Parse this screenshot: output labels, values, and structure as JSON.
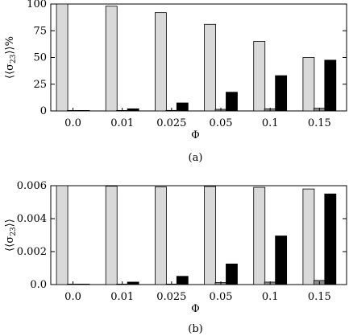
{
  "colors": {
    "series_1": "#d9d9d9",
    "series_2": "#8c8c8c",
    "series_3": "#000000"
  },
  "chart_data": [
    {
      "type": "bar",
      "caption": "(a)",
      "xlabel": "Φ",
      "ylabel": "⟨⟨σ23⟩⟩%",
      "categories": [
        "0.0",
        "0.01",
        "0.025",
        "0.05",
        "0.1",
        "0.15"
      ],
      "ylim": [
        0,
        100
      ],
      "yticks": [
        0,
        25,
        50,
        75,
        100
      ],
      "ytick_labels": [
        "0",
        "25",
        "50",
        "75",
        "100"
      ],
      "series": [
        {
          "values": [
            100,
            98,
            92,
            81,
            65,
            50
          ]
        },
        {
          "values": [
            0,
            0,
            0.5,
            1.5,
            2,
            2.5
          ]
        },
        {
          "values": [
            0,
            2,
            7.5,
            17.5,
            33,
            47.5
          ]
        }
      ]
    },
    {
      "type": "bar",
      "caption": "(b)",
      "xlabel": "Φ",
      "ylabel": "⟨⟨σ23⟩⟩",
      "categories": [
        "0.0",
        "0.01",
        "0.025",
        "0.05",
        "0.1",
        "0.15"
      ],
      "ylim": [
        0,
        0.006
      ],
      "yticks": [
        0,
        0.002,
        0.004,
        0.006
      ],
      "ytick_labels": [
        "0.0",
        "0.002",
        "0.004",
        "0.006"
      ],
      "series": [
        {
          "values": [
            0.006,
            0.00597,
            0.00593,
            0.00595,
            0.0059,
            0.0058
          ]
        },
        {
          "values": [
            0,
            0,
            3e-05,
            0.00012,
            0.00015,
            0.00025
          ]
        },
        {
          "values": [
            0,
            0.00015,
            0.0005,
            0.00125,
            0.00295,
            0.0055
          ]
        }
      ]
    }
  ]
}
